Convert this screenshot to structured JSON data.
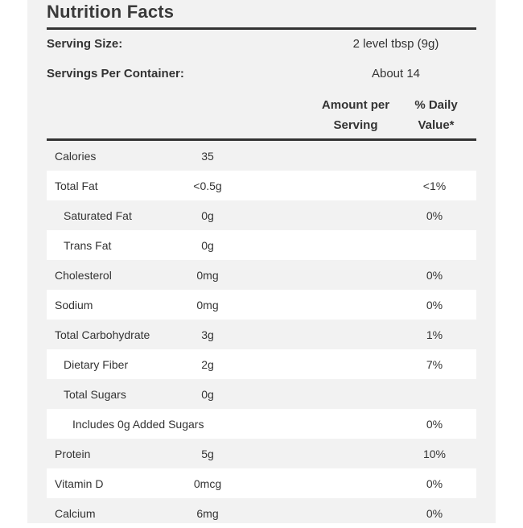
{
  "title": "Nutrition Facts",
  "serving": {
    "size_label": "Serving Size:",
    "size_value": "2 level tbsp (9g)",
    "per_container_label": "Servings Per Container:",
    "per_container_value": "About 14"
  },
  "headers": {
    "amount_line1": "Amount per",
    "amount_line2": "Serving",
    "dv_line1": "% Daily",
    "dv_line2": "Value*"
  },
  "rows": [
    {
      "name": "Calories",
      "amount": "35",
      "dv": "",
      "indent": 0
    },
    {
      "name": "Total Fat",
      "amount": "<0.5g",
      "dv": "<1%",
      "indent": 0
    },
    {
      "name": "Saturated Fat",
      "amount": "0g",
      "dv": "0%",
      "indent": 1
    },
    {
      "name": "Trans Fat",
      "amount": "0g",
      "dv": "",
      "indent": 1
    },
    {
      "name": "Cholesterol",
      "amount": "0mg",
      "dv": "0%",
      "indent": 0
    },
    {
      "name": "Sodium",
      "amount": "0mg",
      "dv": "0%",
      "indent": 0
    },
    {
      "name": "Total Carbohydrate",
      "amount": "3g",
      "dv": "1%",
      "indent": 0
    },
    {
      "name": "Dietary Fiber",
      "amount": "2g",
      "dv": "7%",
      "indent": 1
    },
    {
      "name": "Total Sugars",
      "amount": "0g",
      "dv": "",
      "indent": 1
    },
    {
      "name": "Includes 0g Added Sugars",
      "amount": "",
      "dv": "0%",
      "indent": 2
    },
    {
      "name": "Protein",
      "amount": "5g",
      "dv": "10%",
      "indent": 0
    },
    {
      "name": "Vitamin D",
      "amount": "0mcg",
      "dv": "0%",
      "indent": 0
    },
    {
      "name": "Calcium",
      "amount": "6mg",
      "dv": "0%",
      "indent": 0
    }
  ]
}
